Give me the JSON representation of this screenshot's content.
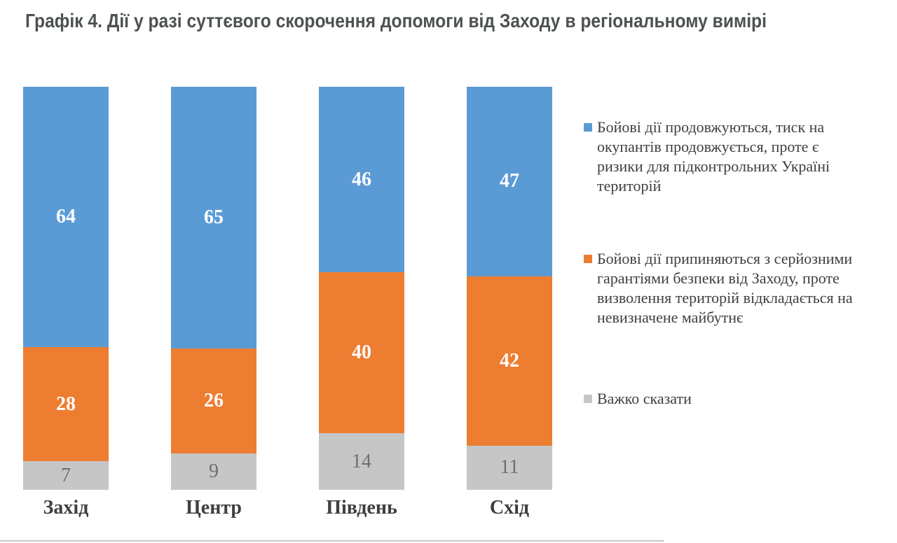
{
  "title": "Графік 4. Дії у разі суттєвого скорочення допомоги від Заходу в регіональному вимірі",
  "colors": {
    "title_text": "#4C5250",
    "category_label": "#3F3F3F",
    "value_label_light": "#FFFFFF",
    "value_label_gray": "#6F6F6F",
    "legend_text": "#3F3F3F",
    "bottom_divider": "#C8C8C8"
  },
  "chart_data": {
    "type": "bar",
    "variant": "stacked-column",
    "title": "Графік 4. Дії у разі суттєвого скорочення допомоги від Заходу в регіональному вимірі",
    "categories": [
      "Захід",
      "Центр",
      "Південь",
      "Схід"
    ],
    "series": [
      {
        "name": "Бойові дії продовжуються, тиск на окупантів продовжується, проте є ризики для підконтрольних Україні територій",
        "color": "#5B9BD5",
        "values": [
          64,
          65,
          46,
          47
        ]
      },
      {
        "name": "Бойові дії припиняються з серйозними гарантіями безпеки від Заходу, проте визволення територій відкладається на невизначене майбутнє",
        "color": "#ED7D31",
        "values": [
          28,
          26,
          40,
          42
        ]
      },
      {
        "name": "Важко сказати",
        "color": "#C6C6C6",
        "values": [
          7,
          9,
          14,
          11
        ]
      }
    ],
    "xlabel": "",
    "ylabel": "",
    "ylim": [
      0,
      100
    ],
    "grid": false,
    "legend_position": "right",
    "value_labels": "inside"
  }
}
